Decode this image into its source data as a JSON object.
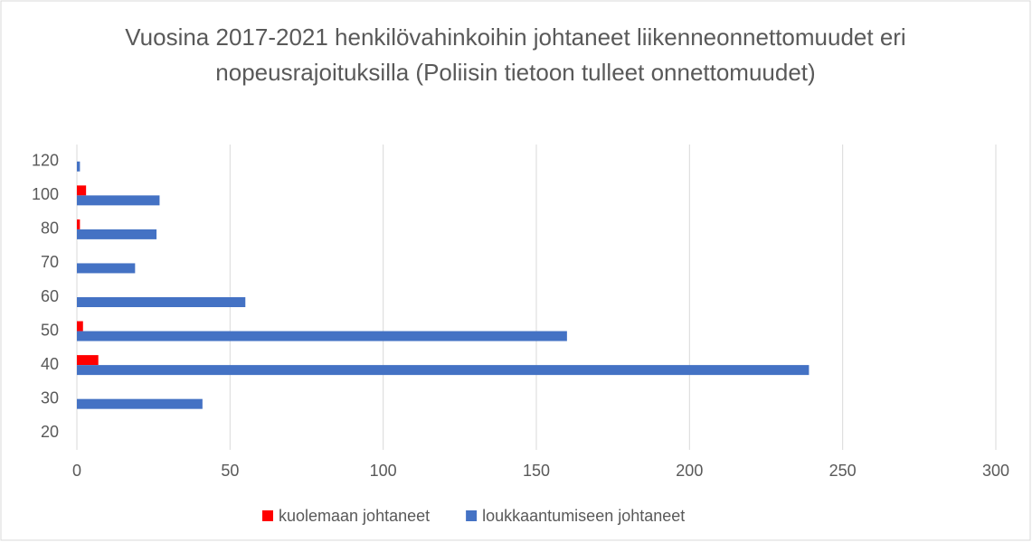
{
  "chart_data": {
    "type": "hbar",
    "title": "Vuosina 2017-2021 henkilövahinkoihin johtaneet liikenneonnettomuudet eri nopeusrajoituksilla (Poliisin tietoon tulleet onnettomuudet)",
    "categories": [
      "20",
      "30",
      "40",
      "50",
      "60",
      "70",
      "80",
      "100",
      "120"
    ],
    "series": [
      {
        "name": "kuolemaan johtaneet",
        "color": "#ff0000",
        "values": [
          0,
          0,
          7,
          2,
          0,
          0,
          1,
          3,
          0
        ]
      },
      {
        "name": "loukkaantumiseen johtaneet",
        "color": "#4472c4",
        "values": [
          0,
          41,
          239,
          160,
          55,
          19,
          26,
          27,
          1
        ]
      }
    ],
    "xlim": [
      0,
      300
    ],
    "xticks": [
      0,
      50,
      100,
      150,
      200,
      250,
      300
    ],
    "grid": true,
    "legend": "bottom"
  }
}
